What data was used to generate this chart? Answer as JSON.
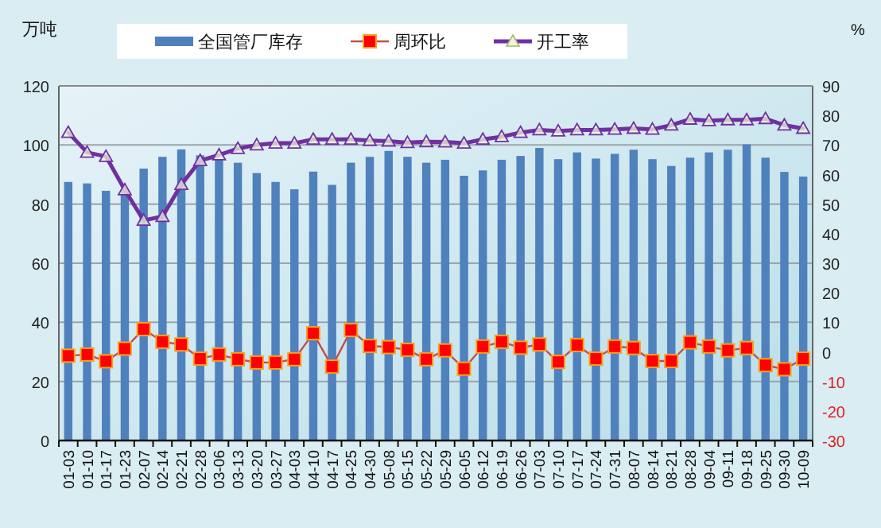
{
  "chart_data": {
    "type": "bar",
    "ylabel": "万吨",
    "y2label": "%",
    "categories": [
      "01-03",
      "01-10",
      "01-17",
      "01-23",
      "02-07",
      "02-14",
      "02-21",
      "02-28",
      "03-06",
      "03-13",
      "03-20",
      "03-27",
      "04-03",
      "04-10",
      "04-17",
      "04-25",
      "04-30",
      "05-08",
      "05-15",
      "05-22",
      "05-29",
      "06-05",
      "06-12",
      "06-19",
      "06-26",
      "07-03",
      "07-10",
      "07-17",
      "07-24",
      "07-31",
      "08-07",
      "08-14",
      "08-21",
      "08-28",
      "09-04",
      "09-11",
      "09-18",
      "09-25",
      "09-30",
      "10-09"
    ],
    "series": [
      {
        "name": "全国管厂库存",
        "color": "#4f81bd",
        "values": [
          87.5,
          87,
          84.5,
          85,
          92,
          96,
          98.5,
          96.5,
          95,
          94,
          90.5,
          87.5,
          85,
          91,
          86.5,
          94,
          96,
          98,
          96,
          94,
          95,
          89.6,
          91.4,
          95,
          96.3,
          99,
          95.2,
          97.5,
          95.4,
          97,
          98.4,
          95.2,
          92.9,
          95.7,
          97.5,
          98.4,
          100.2,
          95.7,
          90.9,
          89.3
        ]
      },
      {
        "name": "周环比",
        "type": "line",
        "axis": "y2",
        "color": "#c0504d",
        "marker": "square",
        "values": [
          -1.3,
          -0.9,
          -3.2,
          1.1,
          7.7,
          3.4,
          2.5,
          -2.3,
          -0.9,
          -2.5,
          -3.6,
          -3.6,
          -2.5,
          6.3,
          -5,
          7.4,
          2,
          1.6,
          0.7,
          -2.5,
          0.5,
          -5.7,
          1.8,
          3.4,
          1.4,
          2.5,
          -3.4,
          2.3,
          -2.3,
          1.8,
          1.3,
          -3.1,
          -3.1,
          3.2,
          1.8,
          0.5,
          1.3,
          -4.5,
          -5.9,
          -2.3
        ]
      },
      {
        "name": "开工率",
        "type": "line",
        "axis": "y2",
        "color": "#7030a0",
        "marker": "triangle",
        "values": [
          74.2,
          67.5,
          66.1,
          54.8,
          44.5,
          45.8,
          56.6,
          64.7,
          66.6,
          68.8,
          70,
          70.6,
          70.6,
          71.9,
          71.9,
          71.9,
          71.5,
          71.3,
          70.8,
          71.1,
          71,
          70.6,
          71.9,
          72.8,
          74.2,
          75.1,
          74.7,
          75.1,
          75.1,
          75.3,
          75.6,
          75.3,
          76.7,
          78.7,
          78.2,
          78.5,
          78.5,
          78.9,
          76.7,
          75.6
        ]
      }
    ],
    "ylim": [
      0,
      120
    ],
    "yticks": [
      0,
      20,
      40,
      60,
      80,
      100,
      120
    ],
    "y2lim": [
      -30,
      90
    ],
    "y2ticks": [
      -30,
      -20,
      -10,
      0,
      10,
      20,
      30,
      40,
      50,
      60,
      70,
      80,
      90
    ],
    "grid": "y",
    "legend": "top"
  }
}
